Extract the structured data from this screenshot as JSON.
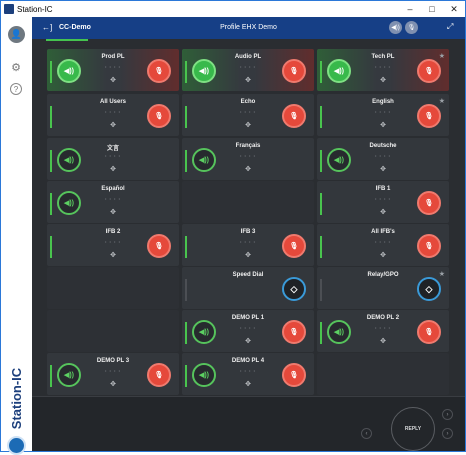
{
  "window": {
    "title": "Station-IC",
    "minimize_glyph": "–",
    "maximize_glyph": "□",
    "close_glyph": "✕"
  },
  "header": {
    "back_glyph": "←]",
    "name": "CC-Demo",
    "profile": "Profile EHX Demo",
    "volume_glyph": "◀))",
    "mic_glyph": "🎙",
    "expand_glyph": "⤢"
  },
  "sidebar": {
    "user_glyph": "👤",
    "gear_glyph": "⚙",
    "help_glyph": "?",
    "brand": "Station-IC"
  },
  "colors": {
    "header_bg": "#163f86",
    "talk_red": "#e5493b",
    "listen_green": "#38b94b",
    "accent_green": "#45c34f",
    "control_blue": "#3a9ad8"
  },
  "icons": {
    "listen": "◀))",
    "talk": "🎙",
    "compass": "✥",
    "control": "◇",
    "star": "★",
    "dots": "• • • •"
  },
  "panels": [
    {
      "name": "Prod PL",
      "listen": "active",
      "talk": true,
      "highlighted": true,
      "meter": true,
      "star": false
    },
    {
      "name": "Audio PL",
      "listen": "active",
      "talk": true,
      "highlighted": true,
      "meter": true,
      "star": false
    },
    {
      "name": "Tech PL",
      "listen": "active",
      "talk": true,
      "highlighted": true,
      "meter": true,
      "star": true
    },
    {
      "name": "All Users",
      "listen": "none",
      "talk": true,
      "highlighted": false,
      "meter": true,
      "star": false
    },
    {
      "name": "Echo",
      "listen": "none",
      "talk": true,
      "highlighted": false,
      "meter": true,
      "star": false
    },
    {
      "name": "English",
      "listen": "none",
      "talk": true,
      "highlighted": false,
      "meter": true,
      "star": true
    },
    {
      "name": "文言",
      "listen": "idle",
      "talk": false,
      "highlighted": false,
      "meter": true,
      "star": false
    },
    {
      "name": "Français",
      "listen": "idle",
      "talk": false,
      "highlighted": false,
      "meter": true,
      "star": false
    },
    {
      "name": "Deutsche",
      "listen": "idle",
      "talk": false,
      "highlighted": false,
      "meter": true,
      "star": false
    },
    {
      "name": "Español",
      "listen": "idle",
      "talk": false,
      "highlighted": false,
      "meter": true,
      "star": false
    },
    {
      "name": "",
      "empty": true
    },
    {
      "name": "IFB 1",
      "listen": "none",
      "talk": true,
      "highlighted": false,
      "meter": true,
      "star": false
    },
    {
      "name": "IFB 2",
      "listen": "none",
      "talk": true,
      "highlighted": false,
      "meter": true,
      "star": false
    },
    {
      "name": "IFB 3",
      "listen": "none",
      "talk": true,
      "highlighted": false,
      "meter": true,
      "star": false
    },
    {
      "name": "All IFB's",
      "listen": "none",
      "talk": true,
      "highlighted": false,
      "meter": true,
      "star": false
    },
    {
      "name": "",
      "empty": true
    },
    {
      "name": "Speed Dial",
      "listen": "none",
      "talk": false,
      "control": true,
      "highlighted": false,
      "meter": false,
      "star": false
    },
    {
      "name": "Relay/GPO",
      "listen": "none",
      "talk": false,
      "control": true,
      "highlighted": false,
      "meter": false,
      "star": true
    },
    {
      "name": "",
      "empty": true
    },
    {
      "name": "DEMO PL 1",
      "listen": "idle",
      "talk": true,
      "highlighted": false,
      "meter": true,
      "star": false
    },
    {
      "name": "DEMO PL 2",
      "listen": "idle",
      "talk": true,
      "highlighted": false,
      "meter": true,
      "star": false
    },
    {
      "name": "DEMO PL 3",
      "listen": "idle",
      "talk": true,
      "highlighted": false,
      "meter": true,
      "star": false
    },
    {
      "name": "DEMO PL 4",
      "listen": "idle",
      "talk": true,
      "highlighted": false,
      "meter": true,
      "star": false
    },
    {
      "name": "",
      "empty": true
    }
  ],
  "footer": {
    "reply_label": "REPLY",
    "prev_glyph": "‹",
    "next_glyph": "›"
  }
}
